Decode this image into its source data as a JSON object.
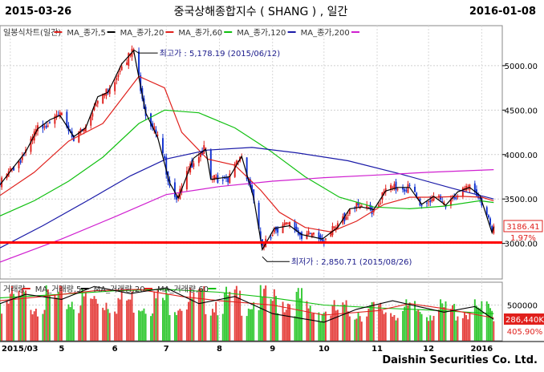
{
  "header": {
    "start_date": "2015-03-26",
    "title": "중국상해종합지수 ( SHANG ) , 일간",
    "end_date": "2016-01-08"
  },
  "price_legend": [
    {
      "label": "일봉식차트(일간)",
      "color": "#e0201c"
    },
    {
      "label": "MA_종가,5",
      "color": "#000000"
    },
    {
      "label": "MA_종가,20",
      "color": "#e0201c"
    },
    {
      "label": "MA_종가,60",
      "color": "#10c010"
    },
    {
      "label": "MA_종가,120",
      "color": "#1a1aa8"
    },
    {
      "label": "MA_종가,200",
      "color": "#d020d0"
    }
  ],
  "volume_legend": [
    {
      "label": "거래량",
      "color": "#e0201c"
    },
    {
      "label": "MA_거래량,5",
      "color": "#000000"
    },
    {
      "label": "MA_거래량,20",
      "color": "#e0201c"
    },
    {
      "label": "MA_거래량,60",
      "color": "#10c010"
    }
  ],
  "annotations": {
    "high": "최고가 : 5,178.19 (2015/06/12)",
    "low": "최저가 : 2,850.71 (2015/08/26)"
  },
  "readouts": {
    "last_price": "3186.41",
    "change_pct": "1.97%",
    "last_volume": "286,440K",
    "volume_pct": "405.90%"
  },
  "footer": {
    "brand": "Daishin Securities Co. Ltd."
  },
  "chart_data": [
    {
      "type": "candlestick",
      "panel": "price",
      "yticks": [
        3000,
        3500,
        4000,
        4500,
        5000
      ],
      "ytick_labels": [
        "3000.00",
        "3500.00",
        "4000.00",
        "4500.00",
        "5000.00"
      ],
      "ylim": [
        2600,
        5450
      ],
      "xticks": [
        {
          "label": "2015/03",
          "x": "2015-04-01"
        },
        {
          "label": "5",
          "x": "2015-05-01"
        },
        {
          "label": "6",
          "x": "2015-06-01"
        },
        {
          "label": "7",
          "x": "2015-07-01"
        },
        {
          "label": "8",
          "x": "2015-08-01"
        },
        {
          "label": "9",
          "x": "2015-09-01"
        },
        {
          "label": "10",
          "x": "2015-10-01"
        },
        {
          "label": "11",
          "x": "2015-11-01"
        },
        {
          "label": "12",
          "x": "2015-12-01"
        },
        {
          "label": "2016",
          "x": "2016-01-01"
        }
      ],
      "xlim": [
        "2015-03-26",
        "2016-01-13"
      ],
      "support_line": 3010,
      "high": {
        "x": "2015-06-12",
        "y": 5178.19
      },
      "low": {
        "x": "2015-08-26",
        "y": 2850.71
      },
      "close_series": [
        [
          "2015-03-26",
          3660
        ],
        [
          "2015-04-03",
          3860
        ],
        [
          "2015-04-10",
          4030
        ],
        [
          "2015-04-17",
          4290
        ],
        [
          "2015-04-24",
          4390
        ],
        [
          "2015-04-30",
          4440
        ],
        [
          "2015-05-08",
          4200
        ],
        [
          "2015-05-15",
          4300
        ],
        [
          "2015-05-22",
          4650
        ],
        [
          "2015-05-28",
          4700
        ],
        [
          "2015-06-05",
          5020
        ],
        [
          "2015-06-12",
          5170
        ],
        [
          "2015-06-19",
          4470
        ],
        [
          "2015-06-26",
          4190
        ],
        [
          "2015-07-03",
          3680
        ],
        [
          "2015-07-08",
          3510
        ],
        [
          "2015-07-17",
          3960
        ],
        [
          "2015-07-24",
          4060
        ],
        [
          "2015-07-27",
          3720
        ],
        [
          "2015-08-07",
          3750
        ],
        [
          "2015-08-14",
          3980
        ],
        [
          "2015-08-21",
          3510
        ],
        [
          "2015-08-26",
          2930
        ],
        [
          "2015-09-02",
          3170
        ],
        [
          "2015-09-11",
          3200
        ],
        [
          "2015-09-18",
          3100
        ],
        [
          "2015-09-30",
          3050
        ],
        [
          "2015-10-09",
          3180
        ],
        [
          "2015-10-16",
          3390
        ],
        [
          "2015-10-23",
          3410
        ],
        [
          "2015-10-30",
          3380
        ],
        [
          "2015-11-06",
          3590
        ],
        [
          "2015-11-13",
          3630
        ],
        [
          "2015-11-20",
          3630
        ],
        [
          "2015-11-27",
          3440
        ],
        [
          "2015-12-04",
          3530
        ],
        [
          "2015-12-11",
          3430
        ],
        [
          "2015-12-18",
          3580
        ],
        [
          "2015-12-25",
          3630
        ],
        [
          "2015-12-31",
          3540
        ],
        [
          "2016-01-04",
          3300
        ],
        [
          "2016-01-07",
          3120
        ],
        [
          "2016-01-08",
          3186.41
        ]
      ],
      "ma_series": [
        {
          "name": "MA_종가,20",
          "color": "#e0201c",
          "points": [
            [
              "2015-03-26",
              3540
            ],
            [
              "2015-04-15",
              3800
            ],
            [
              "2015-05-05",
              4150
            ],
            [
              "2015-05-25",
              4350
            ],
            [
              "2015-06-15",
              4880
            ],
            [
              "2015-06-30",
              4750
            ],
            [
              "2015-07-10",
              4250
            ],
            [
              "2015-07-25",
              3950
            ],
            [
              "2015-08-10",
              3880
            ],
            [
              "2015-08-25",
              3600
            ],
            [
              "2015-09-05",
              3350
            ],
            [
              "2015-09-20",
              3180
            ],
            [
              "2015-10-05",
              3130
            ],
            [
              "2015-10-20",
              3250
            ],
            [
              "2015-11-05",
              3440
            ],
            [
              "2015-11-20",
              3520
            ],
            [
              "2015-12-05",
              3520
            ],
            [
              "2015-12-20",
              3530
            ],
            [
              "2016-01-01",
              3520
            ],
            [
              "2016-01-08",
              3480
            ]
          ]
        },
        {
          "name": "MA_종가,60",
          "color": "#10c010",
          "points": [
            [
              "2015-03-26",
              3310
            ],
            [
              "2015-04-15",
              3480
            ],
            [
              "2015-05-05",
              3700
            ],
            [
              "2015-05-25",
              3970
            ],
            [
              "2015-06-15",
              4350
            ],
            [
              "2015-06-30",
              4500
            ],
            [
              "2015-07-20",
              4470
            ],
            [
              "2015-08-10",
              4300
            ],
            [
              "2015-08-30",
              4050
            ],
            [
              "2015-09-20",
              3750
            ],
            [
              "2015-10-10",
              3520
            ],
            [
              "2015-10-30",
              3410
            ],
            [
              "2015-11-20",
              3390
            ],
            [
              "2015-12-10",
              3420
            ],
            [
              "2015-12-31",
              3480
            ],
            [
              "2016-01-08",
              3460
            ]
          ]
        },
        {
          "name": "MA_종가,120",
          "color": "#1a1aa8",
          "points": [
            [
              "2015-03-26",
              2950
            ],
            [
              "2015-04-20",
              3200
            ],
            [
              "2015-05-15",
              3470
            ],
            [
              "2015-06-10",
              3760
            ],
            [
              "2015-07-01",
              3950
            ],
            [
              "2015-07-25",
              4050
            ],
            [
              "2015-08-20",
              4080
            ],
            [
              "2015-09-15",
              4020
            ],
            [
              "2015-10-15",
              3930
            ],
            [
              "2015-11-15",
              3780
            ],
            [
              "2015-12-15",
              3620
            ],
            [
              "2016-01-08",
              3500
            ]
          ]
        },
        {
          "name": "MA_종가,200",
          "color": "#d020d0",
          "points": [
            [
              "2015-03-26",
              2790
            ],
            [
              "2015-05-01",
              3050
            ],
            [
              "2015-06-01",
              3300
            ],
            [
              "2015-07-01",
              3550
            ],
            [
              "2015-08-01",
              3640
            ],
            [
              "2015-09-01",
              3700
            ],
            [
              "2015-10-01",
              3740
            ],
            [
              "2015-11-01",
              3770
            ],
            [
              "2015-12-01",
              3800
            ],
            [
              "2016-01-08",
              3830
            ]
          ]
        }
      ]
    },
    {
      "type": "bar",
      "panel": "volume",
      "yticks": [
        500000
      ],
      "ytick_labels": [
        "500000"
      ],
      "ylim": [
        0,
        820000
      ],
      "last_value": 286440,
      "ma_series": [
        {
          "name": "MA_거래량,60",
          "color": "#10c010",
          "points": [
            [
              "2015-03-26",
              600000
            ],
            [
              "2015-05-01",
              650000
            ],
            [
              "2015-06-01",
              700000
            ],
            [
              "2015-07-01",
              720000
            ],
            [
              "2015-08-01",
              680000
            ],
            [
              "2015-09-01",
              600000
            ],
            [
              "2015-10-01",
              500000
            ],
            [
              "2015-11-01",
              460000
            ],
            [
              "2015-12-01",
              430000
            ],
            [
              "2016-01-08",
              380000
            ]
          ]
        },
        {
          "name": "MA_거래량,20",
          "color": "#e0201c",
          "points": [
            [
              "2015-03-26",
              560000
            ],
            [
              "2015-04-20",
              620000
            ],
            [
              "2015-05-20",
              700000
            ],
            [
              "2015-06-15",
              720000
            ],
            [
              "2015-07-10",
              620000
            ],
            [
              "2015-08-01",
              560000
            ],
            [
              "2015-09-01",
              500000
            ],
            [
              "2015-10-01",
              360000
            ],
            [
              "2015-11-01",
              420000
            ],
            [
              "2015-11-20",
              520000
            ],
            [
              "2015-12-10",
              450000
            ],
            [
              "2016-01-08",
              320000
            ]
          ]
        },
        {
          "name": "MA_거래량,5",
          "color": "#000000",
          "points": [
            [
              "2015-03-26",
              520000
            ],
            [
              "2015-04-10",
              650000
            ],
            [
              "2015-05-01",
              580000
            ],
            [
              "2015-05-20",
              760000
            ],
            [
              "2015-06-10",
              660000
            ],
            [
              "2015-07-01",
              740000
            ],
            [
              "2015-07-20",
              520000
            ],
            [
              "2015-08-10",
              620000
            ],
            [
              "2015-09-01",
              380000
            ],
            [
              "2015-10-01",
              260000
            ],
            [
              "2015-10-20",
              440000
            ],
            [
              "2015-11-10",
              560000
            ],
            [
              "2015-11-25",
              480000
            ],
            [
              "2015-12-10",
              400000
            ],
            [
              "2015-12-28",
              480000
            ],
            [
              "2016-01-08",
              300000
            ]
          ]
        }
      ]
    }
  ]
}
